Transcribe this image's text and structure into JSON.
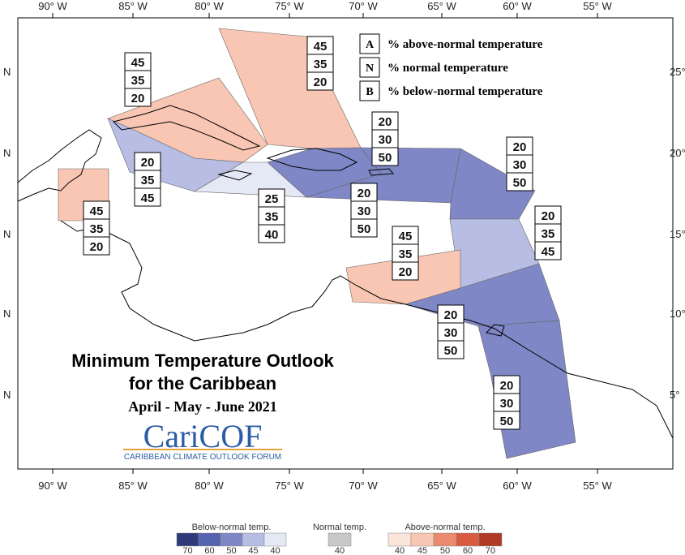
{
  "axes": {
    "top": [
      "90° W",
      "85° W",
      "80° W",
      "75° W",
      "70° W",
      "65° W",
      "60° W",
      "55° W"
    ],
    "bottom": [
      "90° W",
      "85° W",
      "80° W",
      "75° W",
      "70° W",
      "65° W",
      "60° W",
      "55° W"
    ],
    "left": [
      "N",
      "N",
      "N",
      "N",
      "N"
    ],
    "right": [
      "25°",
      "20°",
      "15°",
      "10°",
      "5°"
    ]
  },
  "key": [
    {
      "letter": "A",
      "text": "% above-normal temperature"
    },
    {
      "letter": "N",
      "text": "% normal temperature"
    },
    {
      "letter": "B",
      "text": "% below-normal temperature"
    }
  ],
  "regions": [
    {
      "above": 45,
      "normal": 35,
      "below": 20
    },
    {
      "above": 45,
      "normal": 35,
      "below": 20
    },
    {
      "above": 45,
      "normal": 35,
      "below": 20
    },
    {
      "above": 20,
      "normal": 35,
      "below": 45
    },
    {
      "above": 25,
      "normal": 35,
      "below": 40
    },
    {
      "above": 20,
      "normal": 30,
      "below": 50
    },
    {
      "above": 20,
      "normal": 30,
      "below": 50
    },
    {
      "above": 20,
      "normal": 30,
      "below": 50
    },
    {
      "above": 20,
      "normal": 35,
      "below": 45
    },
    {
      "above": 45,
      "normal": 35,
      "below": 20
    },
    {
      "above": 20,
      "normal": 30,
      "below": 50
    },
    {
      "above": 20,
      "normal": 30,
      "below": 50
    }
  ],
  "title": {
    "line1": "Minimum Temperature Outlook",
    "line2": "for the Caribbean",
    "period": "April - May - June 2021"
  },
  "logo": {
    "name": "CariCOF",
    "subtitle": "CARIBBEAN CLIMATE OUTLOOK FORUM"
  },
  "legend": {
    "below": {
      "label": "Below-normal temp.",
      "ticks": [
        70,
        60,
        50,
        45,
        40
      ]
    },
    "normal": {
      "label": "Normal temp.",
      "ticks": [
        40
      ]
    },
    "above": {
      "label": "Above-normal temp.",
      "ticks": [
        40,
        45,
        50,
        60,
        70
      ]
    }
  }
}
